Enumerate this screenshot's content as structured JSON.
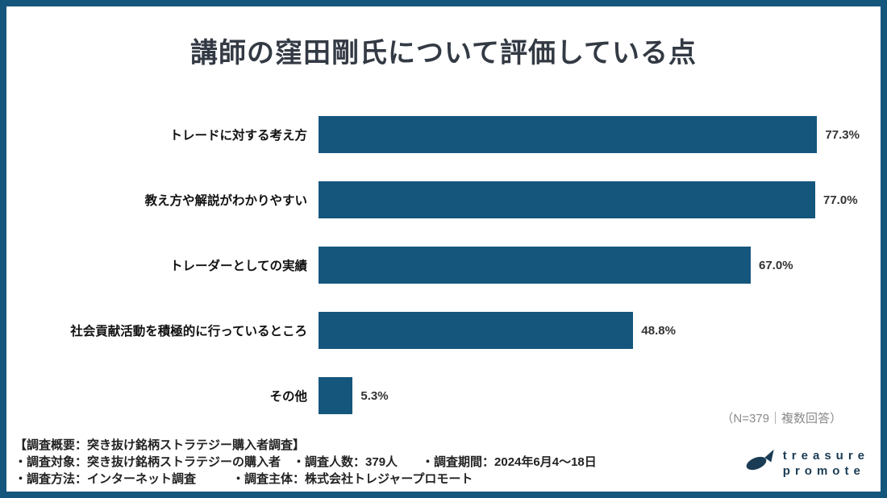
{
  "title": "講師の窪田剛氏について評価している点",
  "chart_data": {
    "type": "bar",
    "orientation": "horizontal",
    "title": "講師の窪田剛氏について評価している点",
    "categories": [
      "トレードに対する考え方",
      "教え方や解説がわかりやすい",
      "トレーダーとしての実績",
      "社会貢献活動を積極的に行っているところ",
      "その他"
    ],
    "values": [
      77.3,
      77.0,
      67.0,
      48.8,
      5.3
    ],
    "value_labels": [
      "77.3%",
      "77.0%",
      "67.0%",
      "48.8%",
      "5.3%"
    ],
    "xlim": [
      0,
      80
    ],
    "bar_color": "#15567D",
    "grid": false,
    "legend": false,
    "note": "（N=379｜複数回答）"
  },
  "footer": {
    "line1": "【調査概要：突き抜け銘柄ストラテジー購入者調査】",
    "line2": "・調査対象：突き抜け銘柄ストラテジーの購入者　・調査人数：379人　　・調査期間：2024年6月4～18日",
    "line3": "・調査方法：インターネット調査　　　・調査主体：株式会社トレジャープロモート",
    "logo": {
      "icon": "fish-icon",
      "text_top": "treasure",
      "text_bottom": "promote"
    }
  }
}
